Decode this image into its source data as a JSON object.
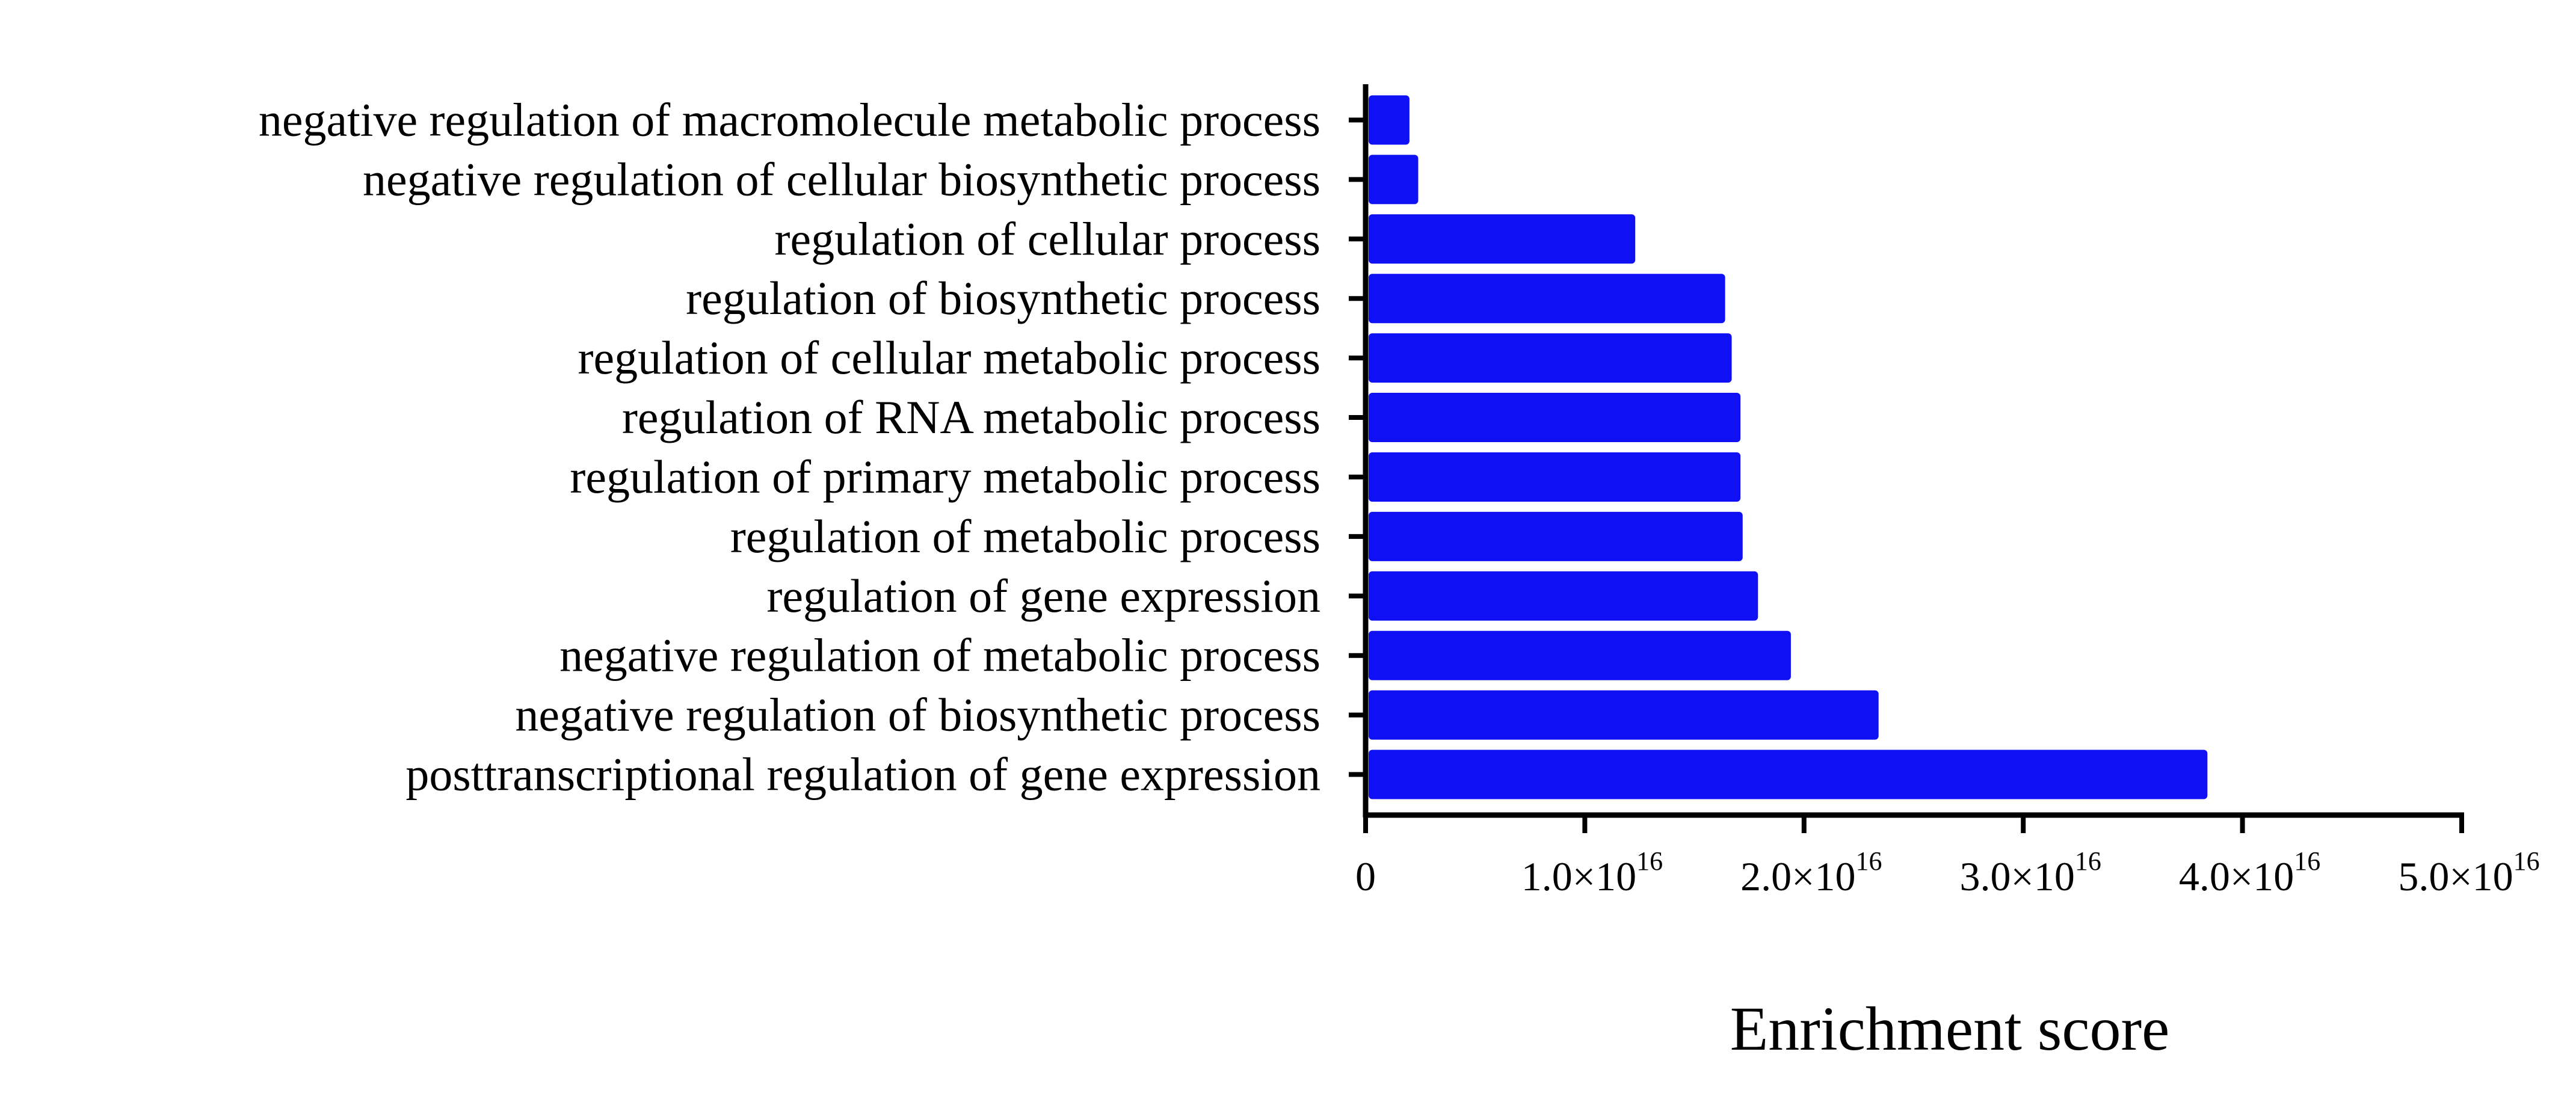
{
  "chart_data": {
    "type": "bar",
    "orientation": "horizontal",
    "title": "",
    "xlabel": "Enrichment score",
    "ylabel": "",
    "xlim": [
      0,
      5e+16
    ],
    "grid": false,
    "legend": "none",
    "bar_color": "#1010F5",
    "categories": [
      "negative regulation of macromolecule metabolic process",
      "negative regulation of cellular biosynthetic process",
      "regulation of cellular process",
      "regulation of biosynthetic process",
      "regulation of cellular metabolic process",
      "regulation of RNA metabolic process",
      "regulation of primary metabolic process",
      "regulation of metabolic process",
      "regulation of gene expression",
      "negative regulation of metabolic process",
      "negative regulation of biosynthetic process",
      "posttranscriptional regulation of gene expression"
    ],
    "values": [
      2000000000000000.0,
      2400000000000000.0,
      1.23e+16,
      1.64e+16,
      1.67e+16,
      1.71e+16,
      1.71e+16,
      1.72e+16,
      1.79e+16,
      1.94e+16,
      2.34e+16,
      3.84e+16
    ],
    "xticks": [
      {
        "value": 0,
        "mantissa": "0",
        "exponent": ""
      },
      {
        "value": 1e+16,
        "mantissa": "1.0×10",
        "exponent": "16"
      },
      {
        "value": 2e+16,
        "mantissa": "2.0×10",
        "exponent": "16"
      },
      {
        "value": 3e+16,
        "mantissa": "3.0×10",
        "exponent": "16"
      },
      {
        "value": 4e+16,
        "mantissa": "4.0×10",
        "exponent": "16"
      },
      {
        "value": 5e+16,
        "mantissa": "5.0×10",
        "exponent": "16"
      }
    ]
  }
}
